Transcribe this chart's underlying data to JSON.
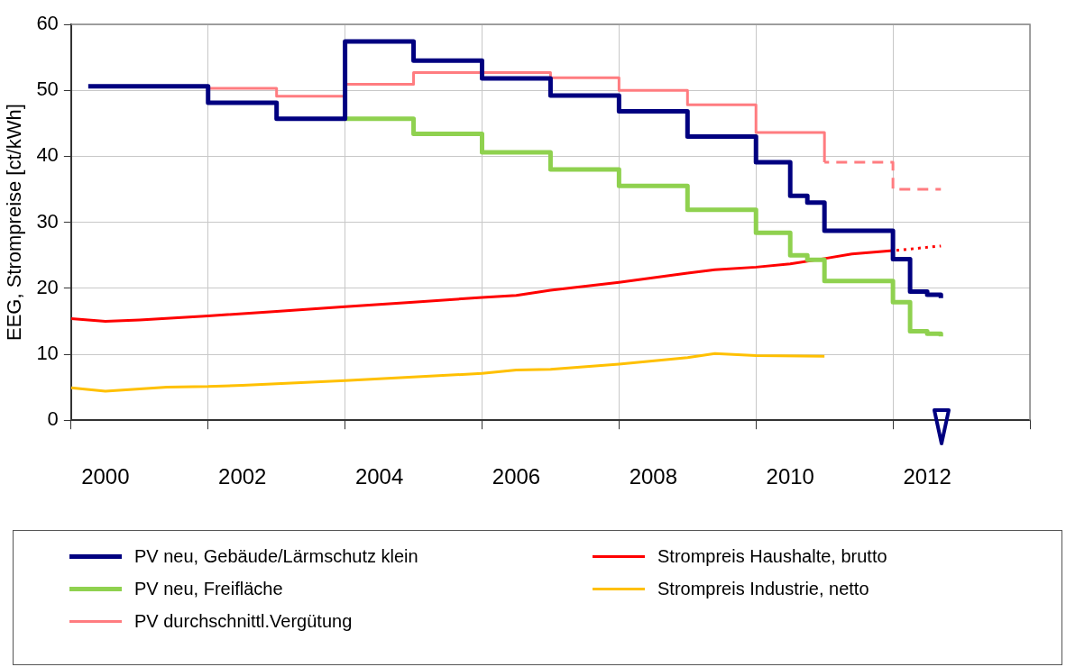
{
  "chart_data": {
    "type": "line",
    "ylabel": "EEG, Strompreise [ct/kWh]",
    "xlim": [
      2000,
      2014
    ],
    "xticks": [
      {
        "value": 2000,
        "label": null
      },
      {
        "value": 2000.5,
        "label": "2000"
      },
      {
        "value": 2002,
        "label": null
      },
      {
        "value": 2002.5,
        "label": "2002"
      },
      {
        "value": 2004,
        "label": null
      },
      {
        "value": 2004.5,
        "label": "2004"
      },
      {
        "value": 2006,
        "label": null
      },
      {
        "value": 2006.5,
        "label": "2006"
      },
      {
        "value": 2008,
        "label": null
      },
      {
        "value": 2008.5,
        "label": "2008"
      },
      {
        "value": 2010,
        "label": null
      },
      {
        "value": 2010.5,
        "label": "2010"
      },
      {
        "value": 2012,
        "label": null
      },
      {
        "value": 2012.5,
        "label": "2012"
      },
      {
        "value": 2014,
        "label": null
      }
    ],
    "ylim": [
      0,
      60
    ],
    "yticks": [
      0,
      10,
      20,
      30,
      40,
      50,
      60
    ],
    "grid": true,
    "legend": "bottom",
    "marker": "none",
    "series": [
      {
        "name": "PV neu, Gebäude/Lärmschutz klein",
        "color": "#000080",
        "type": "step",
        "x": [
          2000.25,
          2002,
          2003,
          2004,
          2005,
          2006,
          2007,
          2008,
          2009,
          2010,
          2010.5,
          2010.75,
          2011,
          2012,
          2012.25,
          2012.5,
          2012.7
        ],
        "values": [
          50.6,
          48.1,
          45.7,
          57.4,
          54.5,
          51.8,
          49.2,
          46.8,
          43.0,
          39.1,
          34.0,
          33.0,
          28.7,
          24.4,
          19.5,
          19.0,
          18.5
        ]
      },
      {
        "name": "PV neu, Freifläche",
        "color": "#8fd14f",
        "type": "step",
        "x": [
          2004,
          2005,
          2006,
          2007,
          2008,
          2009,
          2010,
          2010.5,
          2010.75,
          2011,
          2012,
          2012.25,
          2012.5,
          2012.7
        ],
        "values": [
          45.7,
          43.4,
          40.6,
          38.0,
          35.5,
          31.9,
          28.4,
          25.0,
          24.3,
          21.1,
          17.9,
          13.5,
          13.1,
          12.7
        ]
      },
      {
        "name": "PV durchschnittl.Vergütung",
        "color": "#ff7c80",
        "type": "step",
        "x": [
          2002,
          2003,
          2004,
          2005,
          2007,
          2008,
          2009,
          2010,
          2011
        ],
        "values": [
          50.3,
          49.1,
          50.9,
          52.7,
          51.9,
          50.0,
          47.8,
          43.6,
          39.1
        ]
      },
      {
        "name": "Strompreis Haushalte, brutto",
        "color": "#ff0000",
        "type": "line",
        "x": [
          2000,
          2000.5,
          2001,
          2002,
          2003,
          2004,
          2005,
          2006,
          2006.5,
          2007,
          2008,
          2009,
          2009.4,
          2010,
          2010.5,
          2011,
          2011.4,
          2012
        ],
        "values": [
          15.4,
          15.0,
          15.2,
          15.8,
          16.5,
          17.2,
          17.9,
          18.6,
          18.9,
          19.7,
          20.9,
          22.3,
          22.8,
          23.2,
          23.7,
          24.5,
          25.2,
          25.7
        ]
      },
      {
        "name": "Strompreis Industrie, netto",
        "color": "#ffc000",
        "type": "line",
        "x": [
          2000,
          2000.5,
          2001.4,
          2002,
          2002.5,
          2004,
          2006,
          2006.5,
          2007,
          2008,
          2009,
          2009.4,
          2010,
          2011
        ],
        "values": [
          4.9,
          4.4,
          5.0,
          5.1,
          5.3,
          6.0,
          7.1,
          7.6,
          7.7,
          8.5,
          9.5,
          10.1,
          9.8,
          9.7
        ]
      },
      {
        "color": "#ff7c80",
        "type": "step",
        "line_style": "dashed",
        "x": [
          2011,
          2012,
          2012.7
        ],
        "values": [
          39.1,
          35.0,
          35.0
        ]
      },
      {
        "color": "#ff0000",
        "type": "line",
        "line_style": "dotted",
        "x": [
          2012,
          2012.7
        ],
        "values": [
          25.7,
          26.4
        ]
      }
    ]
  }
}
